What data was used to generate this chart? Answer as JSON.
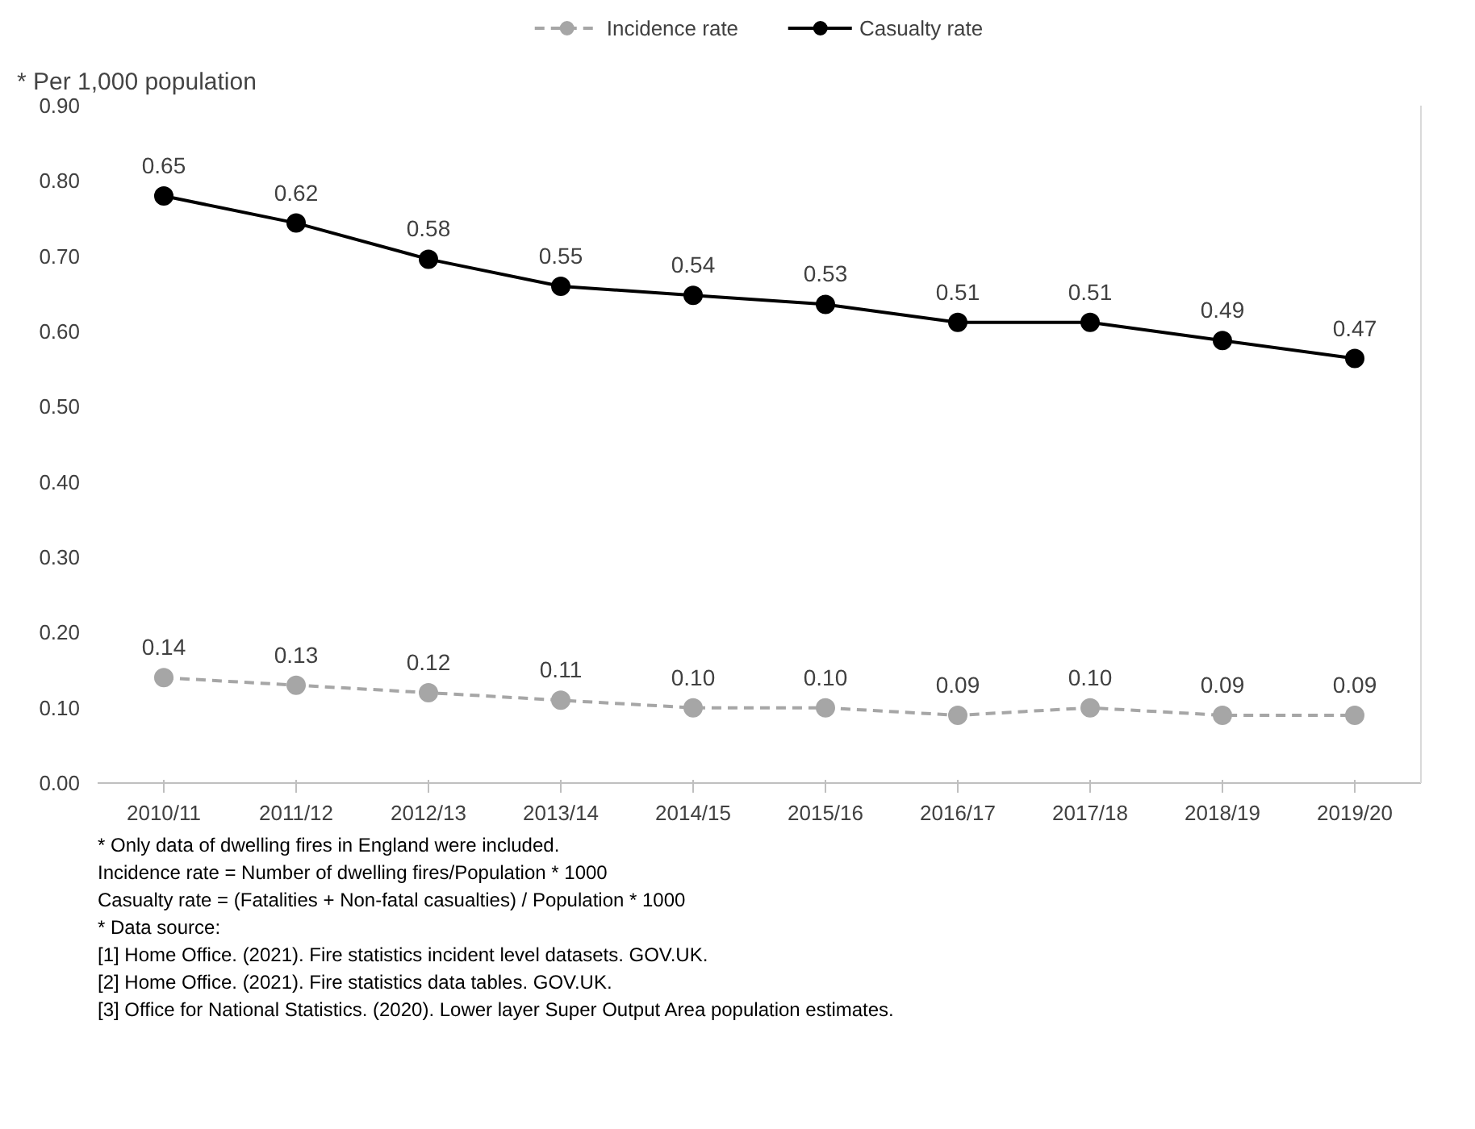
{
  "chart_data": {
    "type": "line",
    "ylabel": "* Per 1,000 population",
    "categories": [
      "2010/11",
      "2011/12",
      "2012/13",
      "2013/14",
      "2014/15",
      "2015/16",
      "2016/17",
      "2017/18",
      "2018/19",
      "2019/20"
    ],
    "series": [
      {
        "name": "Incidence rate",
        "color": "#a6a6a6",
        "line_style": "dashed",
        "values": [
          0.14,
          0.13,
          0.12,
          0.11,
          0.1,
          0.1,
          0.09,
          0.1,
          0.09,
          0.09
        ],
        "value_labels": [
          "0.14",
          "0.13",
          "0.12",
          "0.11",
          "0.10",
          "0.10",
          "0.09",
          "0.10",
          "0.09",
          "0.09"
        ]
      },
      {
        "name": "Casualty rate",
        "color": "#000000",
        "line_style": "solid",
        "axis": "y2",
        "values": [
          0.65,
          0.62,
          0.58,
          0.55,
          0.54,
          0.53,
          0.51,
          0.51,
          0.49,
          0.47
        ],
        "value_labels": [
          "0.65",
          "0.62",
          "0.58",
          "0.55",
          "0.54",
          "0.53",
          "0.51",
          "0.51",
          "0.49",
          "0.47"
        ]
      }
    ],
    "marker": "circle",
    "legend": "top",
    "grid": false,
    "tick_labels": "xy",
    "ylim": [
      0,
      0.9
    ],
    "yticks": [
      {
        "value": 0,
        "label": "0.00"
      },
      {
        "value": 0.1,
        "label": "0.10"
      },
      {
        "value": 0.2,
        "label": "0.20"
      },
      {
        "value": 0.3,
        "label": "0.30"
      },
      {
        "value": 0.4,
        "label": "0.40"
      },
      {
        "value": 0.5,
        "label": "0.50"
      },
      {
        "value": 0.6,
        "label": "0.60"
      },
      {
        "value": 0.7,
        "label": "0.70"
      },
      {
        "value": 0.8,
        "label": "0.80"
      },
      {
        "value": 0.9,
        "label": "0.90"
      }
    ],
    "y2lim": [
      0,
      0.75
    ],
    "annotations": [
      "* Only data of dwelling fires in England were included.",
      "Incidence rate = Number of dwelling fires/Population * 1000",
      "Casualty rate = (Fatalities + Non-fatal casualties) / Population * 1000",
      "* Data source:",
      "[1] Home Office. (2021). Fire statistics incident level datasets. GOV.UK.",
      "[2] Home Office. (2021). Fire statistics data tables. GOV.UK.",
      "[3] Office for National Statistics. (2020). Lower layer Super Output Area population estimates."
    ]
  }
}
